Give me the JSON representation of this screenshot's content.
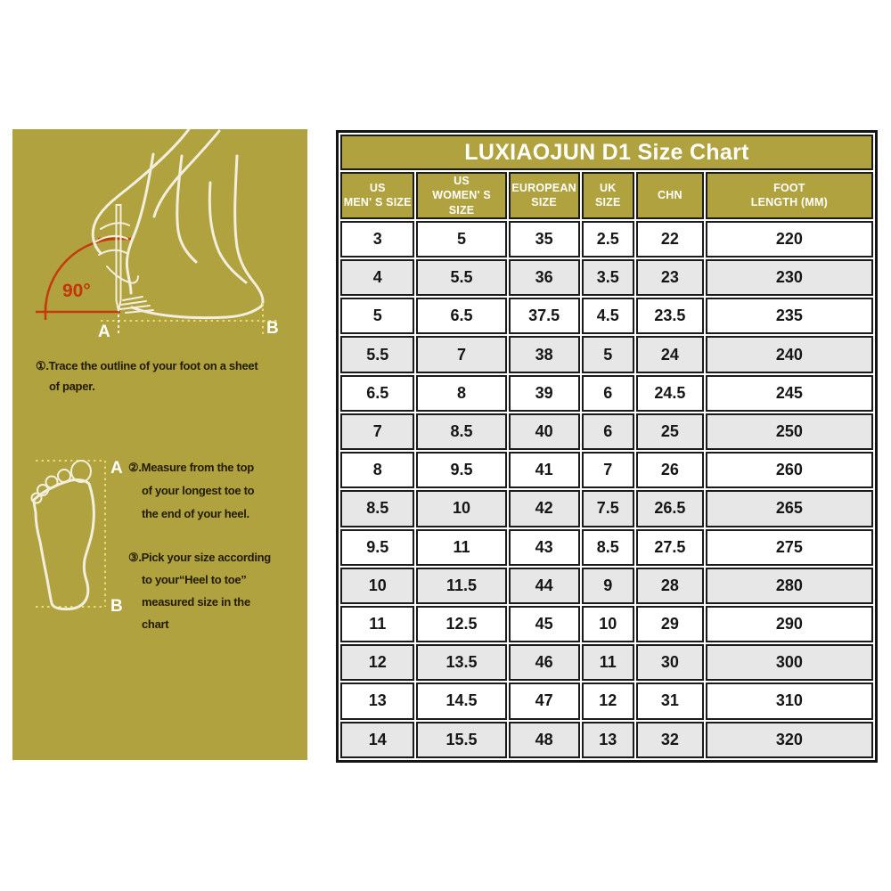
{
  "colors": {
    "panel_olive": "#b0a23e",
    "red_accent": "#c43a0c",
    "row_alt_gray": "#e7e7e7",
    "table_border": "#1b1b1b",
    "instruction_ink": "#221c05",
    "outline_white": "#f3efde"
  },
  "left_panel": {
    "angle_label": "90°",
    "trace_point_a": "A",
    "trace_point_b": "B",
    "sole_point_a": "A",
    "sole_point_b": "B",
    "steps": {
      "step1": "①.Trace the outline of your foot on a sheet\nof paper.",
      "step2": "②.Measure from the top\nof your longest toe to\nthe end of your heel.",
      "step3": "③.Pick your size according\nto your“Heel to toe”\nmeasured size in the\nchart"
    }
  },
  "chart_data": {
    "type": "table",
    "title": "LUXIAOJUN D1 Size Chart",
    "columns": [
      "US\nMEN' S SIZE",
      "US\nWOMEN' S SIZE",
      "EUROPEAN\nSIZE",
      "UK\nSIZE",
      "CHN",
      "FOOT\nLENGTH (MM)"
    ],
    "rows": [
      [
        "3",
        "5",
        "35",
        "2.5",
        "22",
        "220"
      ],
      [
        "4",
        "5.5",
        "36",
        "3.5",
        "23",
        "230"
      ],
      [
        "5",
        "6.5",
        "37.5",
        "4.5",
        "23.5",
        "235"
      ],
      [
        "5.5",
        "7",
        "38",
        "5",
        "24",
        "240"
      ],
      [
        "6.5",
        "8",
        "39",
        "6",
        "24.5",
        "245"
      ],
      [
        "7",
        "8.5",
        "40",
        "6",
        "25",
        "250"
      ],
      [
        "8",
        "9.5",
        "41",
        "7",
        "26",
        "260"
      ],
      [
        "8.5",
        "10",
        "42",
        "7.5",
        "26.5",
        "265"
      ],
      [
        "9.5",
        "11",
        "43",
        "8.5",
        "27.5",
        "275"
      ],
      [
        "10",
        "11.5",
        "44",
        "9",
        "28",
        "280"
      ],
      [
        "11",
        "12.5",
        "45",
        "10",
        "29",
        "290"
      ],
      [
        "12",
        "13.5",
        "46",
        "11",
        "30",
        "300"
      ],
      [
        "13",
        "14.5",
        "47",
        "12",
        "31",
        "310"
      ],
      [
        "14",
        "15.5",
        "48",
        "13",
        "32",
        "320"
      ]
    ]
  }
}
